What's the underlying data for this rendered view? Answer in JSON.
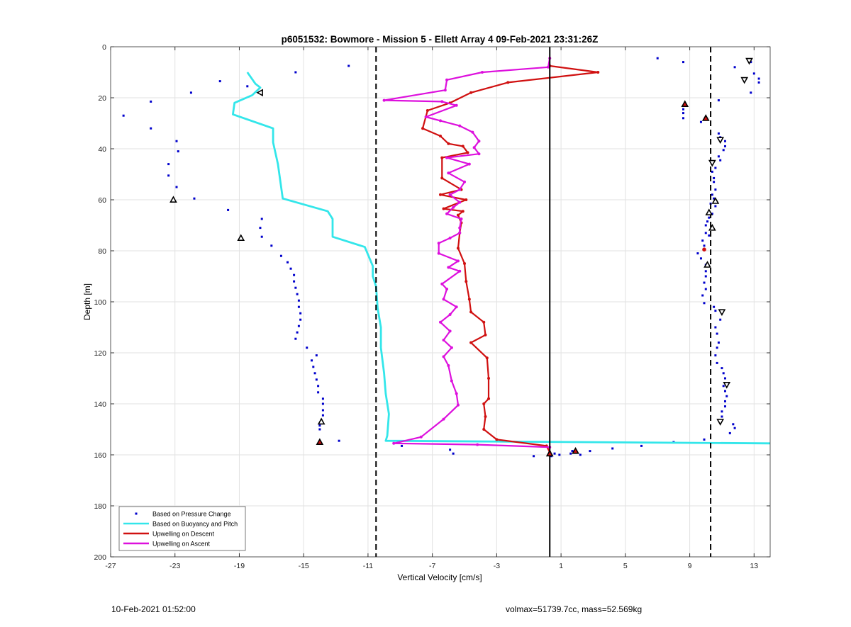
{
  "chart_data": {
    "type": "scatter",
    "title": "p6051532: Bowmore - Mission 5 - Ellett Array 4 09-Feb-2021 23:31:26Z",
    "xlabel": "Vertical Velocity [cm/s]",
    "ylabel": "Depth [m]",
    "xlim": [
      -27,
      14
    ],
    "ylim": [
      0,
      200
    ],
    "y_reversed": true,
    "x_ticks": [
      -27,
      -23,
      -19,
      -15,
      -11,
      -7,
      -3,
      1,
      5,
      9,
      13
    ],
    "y_ticks": [
      0,
      20,
      40,
      60,
      80,
      100,
      120,
      140,
      160,
      180,
      200
    ],
    "grid": true,
    "legend_position": "bottom-left",
    "colors": {
      "pressure": "#0000cc",
      "buoyancy": "#33e6ea",
      "descent": "#d01010",
      "ascent": "#dd10dd",
      "black": "#000000",
      "grid": "#e2e2e2"
    },
    "reference_lines": [
      {
        "x": -10.5,
        "style": "dashed"
      },
      {
        "x": 0.3,
        "style": "solid"
      },
      {
        "x": 10.3,
        "style": "dashed"
      }
    ],
    "series": [
      {
        "name": "Based on Pressure Change",
        "style": "dots",
        "points": [
          [
            7,
            4.5
          ],
          [
            12.8,
            6
          ],
          [
            8.6,
            6
          ],
          [
            11.8,
            8
          ],
          [
            -12.2,
            7.5
          ],
          [
            -15.5,
            10
          ],
          [
            13,
            10.5
          ],
          [
            13.3,
            12.5
          ],
          [
            13.3,
            14
          ],
          [
            -20.2,
            13.5
          ],
          [
            -18.5,
            15.5
          ],
          [
            -22,
            18
          ],
          [
            12.8,
            18
          ],
          [
            10.8,
            21
          ],
          [
            -24.5,
            21.5
          ],
          [
            8.7,
            23
          ],
          [
            8.6,
            24.5
          ],
          [
            8.6,
            26
          ],
          [
            -26.2,
            27
          ],
          [
            8.6,
            28
          ],
          [
            10,
            28
          ],
          [
            9.7,
            29.5
          ],
          [
            -24.5,
            32
          ],
          [
            10.8,
            34
          ],
          [
            10.9,
            35.5
          ],
          [
            -22.9,
            37
          ],
          [
            11.2,
            37
          ],
          [
            11.2,
            39
          ],
          [
            11.1,
            40.5
          ],
          [
            -22.8,
            41
          ],
          [
            10.8,
            43
          ],
          [
            10.9,
            44.5
          ],
          [
            -23.4,
            46
          ],
          [
            10.6,
            47.5
          ],
          [
            10.4,
            49
          ],
          [
            -23.4,
            50.5
          ],
          [
            10.5,
            51.5
          ],
          [
            10.5,
            53
          ],
          [
            -22.9,
            55
          ],
          [
            10.6,
            56
          ],
          [
            10.4,
            58
          ],
          [
            -21.8,
            59.5
          ],
          [
            10.5,
            59.5
          ],
          [
            10.3,
            61.5
          ],
          [
            10.6,
            62.5
          ],
          [
            -19.7,
            64
          ],
          [
            10.4,
            65.5
          ],
          [
            10.2,
            67
          ],
          [
            -17.6,
            67.5
          ],
          [
            10.1,
            68.5
          ],
          [
            10,
            70
          ],
          [
            -17.7,
            71
          ],
          [
            10,
            73
          ],
          [
            10.2,
            74
          ],
          [
            -17.6,
            74.5
          ],
          [
            9.8,
            76
          ],
          [
            -17,
            78
          ],
          [
            9.9,
            78
          ],
          [
            9.5,
            81
          ],
          [
            -16.4,
            82
          ],
          [
            9.7,
            83
          ],
          [
            -16,
            84.5
          ],
          [
            10,
            85.5
          ],
          [
            -15.8,
            87
          ],
          [
            10,
            88
          ],
          [
            -15.6,
            89.5
          ],
          [
            10,
            90
          ],
          [
            -15.6,
            92
          ],
          [
            9.9,
            92.5
          ],
          [
            -15.5,
            94.5
          ],
          [
            10,
            95
          ],
          [
            -15.4,
            97
          ],
          [
            9.8,
            97.5
          ],
          [
            -15.3,
            99.5
          ],
          [
            9.9,
            100.5
          ],
          [
            -15.3,
            102
          ],
          [
            10.5,
            102
          ],
          [
            10.6,
            103.5
          ],
          [
            -15.2,
            104.5
          ],
          [
            -15.2,
            107
          ],
          [
            10.9,
            107
          ],
          [
            -15.3,
            109.5
          ],
          [
            10.6,
            110
          ],
          [
            -15.4,
            112
          ],
          [
            10.7,
            112.5
          ],
          [
            -15.5,
            114.5
          ],
          [
            10.8,
            116
          ],
          [
            -14.8,
            118
          ],
          [
            10.7,
            118
          ],
          [
            -14.2,
            121
          ],
          [
            10.6,
            121
          ],
          [
            -14.5,
            123
          ],
          [
            10.7,
            124
          ],
          [
            -14.4,
            125.5
          ],
          [
            11,
            126
          ],
          [
            -14.3,
            128
          ],
          [
            11.1,
            128
          ],
          [
            -14.2,
            130.5
          ],
          [
            11.2,
            130
          ],
          [
            -14.1,
            133
          ],
          [
            11.1,
            133
          ],
          [
            11.2,
            135
          ],
          [
            -14.1,
            135.5
          ],
          [
            11.3,
            137
          ],
          [
            -13.8,
            138
          ],
          [
            11.2,
            139
          ],
          [
            -13.8,
            140
          ],
          [
            11.2,
            141
          ],
          [
            -13.8,
            142.5
          ],
          [
            11,
            143
          ],
          [
            -13.8,
            144.5
          ],
          [
            11,
            145
          ],
          [
            -13.9,
            146.5
          ],
          [
            11.7,
            148
          ],
          [
            -14,
            148.5
          ],
          [
            11.8,
            149.5
          ],
          [
            -14,
            150
          ],
          [
            11.5,
            151.5
          ],
          [
            9.9,
            154
          ],
          [
            -12.8,
            154.5
          ],
          [
            -14,
            155
          ],
          [
            -8.9,
            156.5
          ],
          [
            6,
            156.5
          ],
          [
            8,
            155
          ],
          [
            4.2,
            157.5
          ],
          [
            2.8,
            158.5
          ],
          [
            -5.9,
            158
          ],
          [
            1.7,
            158.5
          ],
          [
            1.6,
            159.5
          ],
          [
            -5.7,
            159.5
          ],
          [
            0.6,
            159.5
          ],
          [
            0.9,
            160
          ],
          [
            2.2,
            160
          ],
          [
            -0.7,
            160.5
          ],
          [
            0.4,
            160.5
          ]
        ]
      },
      {
        "name": "Based on Buoyancy and Pitch",
        "style": "line",
        "points": [
          [
            -18.5,
            10
          ],
          [
            -18,
            14.5
          ],
          [
            -17.7,
            16
          ],
          [
            -18.2,
            19
          ],
          [
            -19.3,
            22
          ],
          [
            -19.4,
            26.5
          ],
          [
            -16.9,
            32
          ],
          [
            -16.9,
            37.5
          ],
          [
            -16.6,
            46
          ],
          [
            -16.3,
            59.5
          ],
          [
            -13.5,
            64.5
          ],
          [
            -13.2,
            67.5
          ],
          [
            -13.2,
            74.5
          ],
          [
            -11.2,
            78.5
          ],
          [
            -10.7,
            86
          ],
          [
            -10.7,
            90
          ],
          [
            -10.5,
            94
          ],
          [
            -10.4,
            102.5
          ],
          [
            -10.2,
            110
          ],
          [
            -10.2,
            118
          ],
          [
            -10,
            128
          ],
          [
            -9.9,
            136
          ],
          [
            -9.7,
            144
          ],
          [
            -9.8,
            152.5
          ],
          [
            -9.9,
            154.5
          ],
          [
            14,
            155.5
          ]
        ]
      },
      {
        "name": "Upwelling on Descent",
        "style": "line",
        "points": [
          [
            0.3,
            7.5
          ],
          [
            3.3,
            10
          ],
          [
            -2.3,
            14
          ],
          [
            -4.6,
            18
          ],
          [
            -5.9,
            22
          ],
          [
            -7.3,
            25
          ],
          [
            -7.6,
            32
          ],
          [
            -6.5,
            35
          ],
          [
            -6,
            38
          ],
          [
            -5.1,
            39
          ],
          [
            -4.8,
            41.5
          ],
          [
            -6.4,
            43.5
          ],
          [
            -6.4,
            51.5
          ],
          [
            -5.2,
            56
          ],
          [
            -6.5,
            58
          ],
          [
            -4.9,
            60
          ],
          [
            -6.3,
            63.5
          ],
          [
            -5.1,
            64.5
          ],
          [
            -5.4,
            66
          ],
          [
            -5.2,
            69
          ],
          [
            -5.3,
            73
          ],
          [
            -5.4,
            79
          ],
          [
            -5,
            85
          ],
          [
            -4.9,
            92
          ],
          [
            -4.7,
            99
          ],
          [
            -4.6,
            104
          ],
          [
            -3.8,
            108
          ],
          [
            -3.7,
            113
          ],
          [
            -4.6,
            116
          ],
          [
            -3.6,
            122
          ],
          [
            -3.5,
            130
          ],
          [
            -3.5,
            138
          ],
          [
            -3.8,
            140
          ],
          [
            -3.7,
            145
          ],
          [
            -3.8,
            150
          ],
          [
            -3,
            154
          ],
          [
            0.1,
            156.5
          ],
          [
            0.3,
            159
          ]
        ]
      },
      {
        "name": "Upwelling on Ascent",
        "style": "line",
        "points": [
          [
            0.3,
            4.5
          ],
          [
            0.2,
            8
          ],
          [
            -3.9,
            10
          ],
          [
            -6.1,
            13
          ],
          [
            -6.2,
            17
          ],
          [
            -10,
            21
          ],
          [
            -6.4,
            21.5
          ],
          [
            -5.5,
            23
          ],
          [
            -7.4,
            27.5
          ],
          [
            -6.5,
            29
          ],
          [
            -5.3,
            31
          ],
          [
            -4.5,
            33.5
          ],
          [
            -4.1,
            37
          ],
          [
            -4.4,
            39.5
          ],
          [
            -4.1,
            42
          ],
          [
            -6.1,
            43.5
          ],
          [
            -4.7,
            46
          ],
          [
            -6,
            49.5
          ],
          [
            -5,
            53
          ],
          [
            -5.3,
            56
          ],
          [
            -5.9,
            58
          ],
          [
            -5.3,
            61
          ],
          [
            -5.7,
            63
          ],
          [
            -6.1,
            65.5
          ],
          [
            -5.2,
            67.5
          ],
          [
            -5.3,
            71
          ],
          [
            -5.3,
            73
          ],
          [
            -5.9,
            75
          ],
          [
            -6.6,
            77
          ],
          [
            -6.6,
            81
          ],
          [
            -5.4,
            84
          ],
          [
            -6,
            86.5
          ],
          [
            -5.3,
            88
          ],
          [
            -6.4,
            93
          ],
          [
            -6.1,
            95
          ],
          [
            -6.3,
            99
          ],
          [
            -5.5,
            102
          ],
          [
            -5.9,
            105
          ],
          [
            -6.5,
            108
          ],
          [
            -5.9,
            111.5
          ],
          [
            -6.3,
            115
          ],
          [
            -5.8,
            118
          ],
          [
            -6.3,
            121.5
          ],
          [
            -6,
            125
          ],
          [
            -5.8,
            131
          ],
          [
            -5.5,
            136
          ],
          [
            -5.4,
            140.5
          ],
          [
            -6.3,
            146
          ],
          [
            -7.7,
            153
          ],
          [
            -9.4,
            155.5
          ],
          [
            -4.2,
            156
          ],
          [
            0.3,
            157
          ]
        ]
      }
    ],
    "markers": [
      {
        "shape": "triangle-left",
        "fill": "none",
        "points": [
          [
            -17.7,
            18
          ]
        ]
      },
      {
        "shape": "triangle-down",
        "fill": "none",
        "points": [
          [
            12.7,
            5.5
          ],
          [
            12.4,
            13
          ],
          [
            10.9,
            36.5
          ],
          [
            10.4,
            45.5
          ],
          [
            11,
            104
          ],
          [
            11.3,
            132.5
          ],
          [
            10.9,
            147
          ]
        ]
      },
      {
        "shape": "triangle-up",
        "fill": "none",
        "points": [
          [
            -23.1,
            60
          ],
          [
            -18.9,
            75
          ],
          [
            -13.9,
            147
          ],
          [
            10.2,
            65
          ],
          [
            10.4,
            71
          ],
          [
            10.6,
            60.5
          ],
          [
            10.1,
            85.5
          ]
        ]
      },
      {
        "shape": "triangle-up",
        "fill": "#d01010",
        "points": [
          [
            8.7,
            22.5
          ],
          [
            10,
            28
          ],
          [
            -14,
            155
          ],
          [
            1.9,
            158.5
          ],
          [
            0.3,
            159.5
          ]
        ]
      },
      {
        "shape": "circle",
        "fill": "#d01010",
        "points": [
          [
            9.9,
            79.5
          ]
        ]
      }
    ]
  },
  "footer": {
    "timestamp": "10-Feb-2021 01:52:00",
    "vol_mass": "volmax=51739.7cc, mass=52.569kg"
  }
}
